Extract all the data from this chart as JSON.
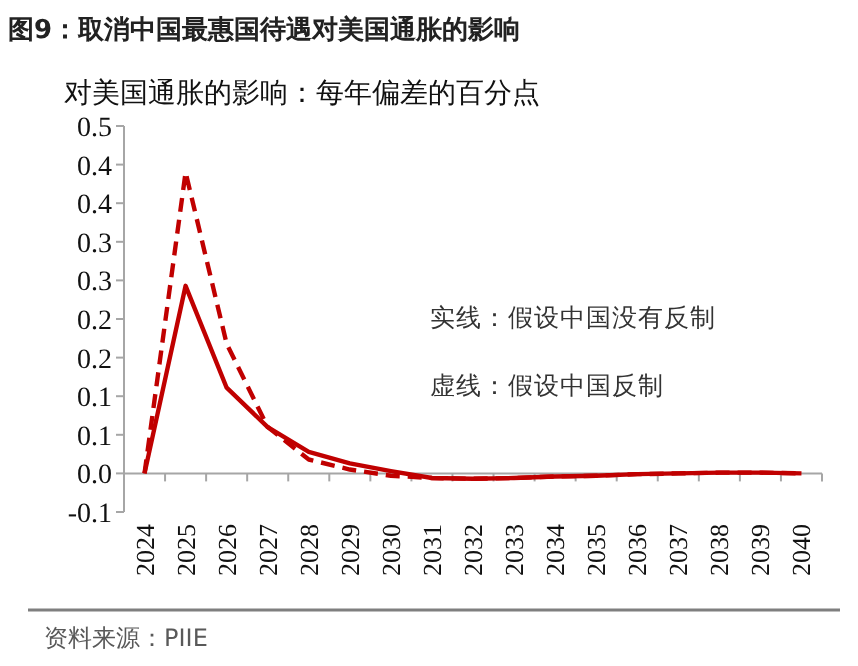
{
  "chart_data": {
    "type": "line",
    "title": "图9：取消中国最惠国待遇对美国通胀的影响",
    "subtitle": "对美国通胀的影响：每年偏差的百分点",
    "categories": [
      "2024",
      "2025",
      "2026",
      "2027",
      "2028",
      "2029",
      "2030",
      "2031",
      "2032",
      "2033",
      "2034",
      "2035",
      "2036",
      "2037",
      "2038",
      "2039",
      "2040"
    ],
    "series": [
      {
        "color": "#c00000",
        "line_style": "solid",
        "values": [
          0.0,
          0.243,
          0.111,
          0.06,
          0.028,
          0.013,
          0.003,
          -0.006,
          -0.007,
          -0.006,
          -0.004,
          -0.003,
          -0.001,
          0.0,
          0.001,
          0.001,
          0.0
        ]
      },
      {
        "color": "#c00000",
        "line_style": "dashed",
        "values": [
          0.0,
          0.39,
          0.168,
          0.06,
          0.018,
          0.005,
          -0.003,
          -0.006,
          -0.007,
          -0.006,
          -0.004,
          -0.003,
          -0.001,
          0.0,
          0.001,
          0.001,
          0.0
        ]
      }
    ],
    "ylim": [
      -0.05,
      0.45
    ],
    "yticks": [
      {
        "value": -0.05,
        "label": "-0.1"
      },
      {
        "value": 0,
        "label": "0.0"
      },
      {
        "value": 0.05,
        "label": "0.1"
      },
      {
        "value": 0.1,
        "label": "0.1"
      },
      {
        "value": 0.15,
        "label": "0.2"
      },
      {
        "value": 0.2,
        "label": "0.2"
      },
      {
        "value": 0.25,
        "label": "0.3"
      },
      {
        "value": 0.3,
        "label": "0.3"
      },
      {
        "value": 0.35,
        "label": "0.4"
      },
      {
        "value": 0.4,
        "label": "0.4"
      },
      {
        "value": 0.45,
        "label": "0.5"
      }
    ],
    "marker": "none",
    "grid": false,
    "annotations": [
      "实线：假设中国没有反制",
      "虚线：假设中国反制",
      "资料来源：PIIE"
    ]
  }
}
